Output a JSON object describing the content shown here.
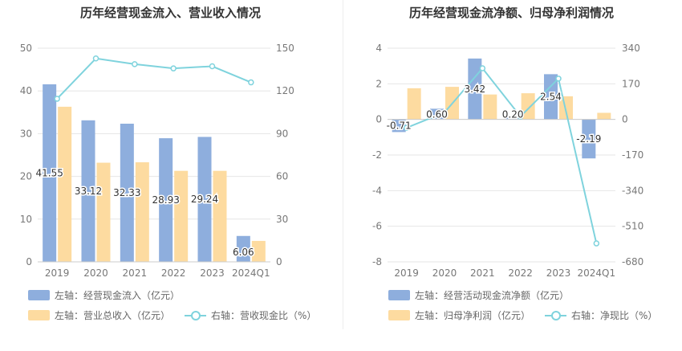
{
  "titles": {
    "left": "历年经营现金流入、营业收入情况",
    "right": "历年经营现金流净额、归母净利润情况"
  },
  "colors": {
    "bar_blue": "#8eaedd",
    "bar_orange": "#fddba0",
    "line": "#7fd3dd",
    "grid": "#e6e6e6",
    "axis_text": "#777777"
  },
  "legend": {
    "left": {
      "series1": "左轴：经营现金流入（亿元）",
      "series2": "左轴：营业总收入（亿元）",
      "series3": "右轴：营收现金比（%）"
    },
    "right": {
      "series1": "左轴：经营活动现金流净额（亿元）",
      "series2": "左轴：归母净利润（亿元）",
      "series3": "右轴：净现比（%）"
    }
  },
  "chart_data": [
    {
      "type": "bar",
      "title": "历年经营现金流入、营业收入情况",
      "categories": [
        "2019",
        "2020",
        "2021",
        "2022",
        "2023",
        "2024Q1"
      ],
      "y_left": {
        "min": 0,
        "max": 50,
        "ticks": [
          "0",
          "10",
          "20",
          "30",
          "40",
          "50"
        ]
      },
      "y_right": {
        "min": 0,
        "max": 150,
        "ticks": [
          "0",
          "30",
          "60",
          "90",
          "120",
          "150"
        ]
      },
      "series": [
        {
          "name": "左轴：经营现金流入（亿元）",
          "axis": "left",
          "kind": "bar",
          "values": [
            41.55,
            33.12,
            32.33,
            28.93,
            29.24,
            6.06
          ],
          "labels": [
            "41.55",
            "33.12",
            "32.33",
            "28.93",
            "29.24",
            "6.06"
          ]
        },
        {
          "name": "左轴：营业总收入（亿元）",
          "axis": "left",
          "kind": "bar",
          "values": [
            36.3,
            23.2,
            23.3,
            21.3,
            21.3,
            4.9
          ]
        },
        {
          "name": "右轴：营收现金比（%）",
          "axis": "right",
          "kind": "line",
          "values": [
            114.5,
            142.8,
            138.8,
            135.8,
            137.3,
            126.0
          ]
        }
      ]
    },
    {
      "type": "bar",
      "title": "历年经营现金流净额、归母净利润情况",
      "categories": [
        "2019",
        "2020",
        "2021",
        "2022",
        "2023",
        "2024Q1"
      ],
      "y_left": {
        "min": -8,
        "max": 4,
        "ticks": [
          "-8",
          "-6",
          "-4",
          "-2",
          "0",
          "2",
          "4"
        ]
      },
      "y_right": {
        "min": -680,
        "max": 340,
        "ticks": [
          "-680",
          "-510",
          "-340",
          "-170",
          "0",
          "170",
          "340"
        ]
      },
      "series": [
        {
          "name": "左轴：经营活动现金流净额（亿元）",
          "axis": "left",
          "kind": "bar",
          "values": [
            -0.71,
            0.6,
            3.42,
            0.2,
            2.54,
            -2.19
          ],
          "labels": [
            "-0.71",
            "0.60",
            "3.42",
            "0.20",
            "2.54",
            "-2.19"
          ]
        },
        {
          "name": "左轴：归母净利润（亿元）",
          "axis": "left",
          "kind": "bar",
          "values": [
            1.75,
            1.83,
            1.4,
            1.47,
            1.3,
            0.37
          ]
        },
        {
          "name": "右轴：净现比（%）",
          "axis": "right",
          "kind": "line",
          "values": [
            -40,
            33,
            244,
            14,
            195,
            -592
          ]
        }
      ]
    }
  ]
}
